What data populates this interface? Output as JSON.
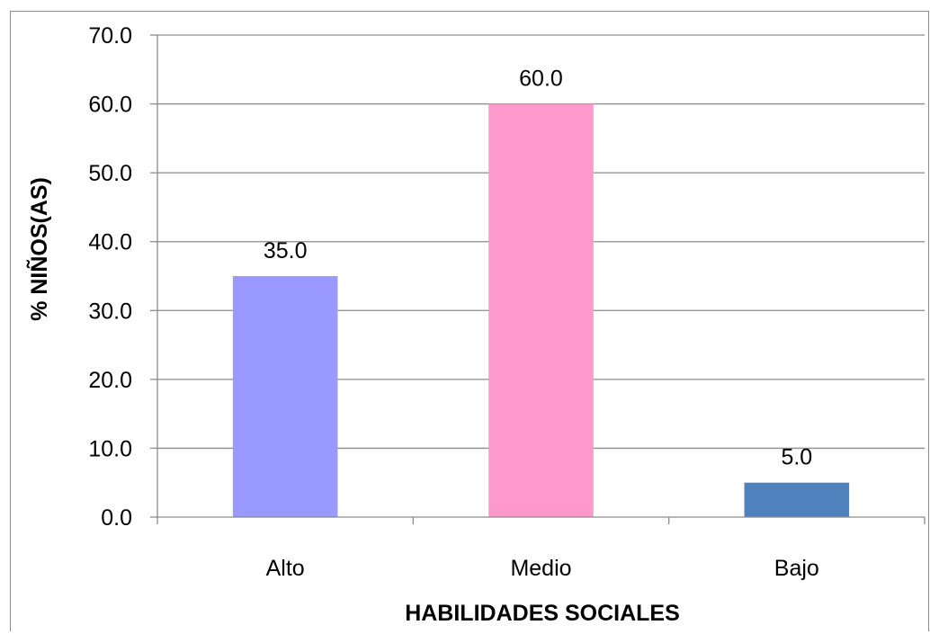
{
  "chart_data": {
    "type": "bar",
    "title": "",
    "xlabel": "HABILIDADES SOCIALES",
    "ylabel": "% NIÑOS(AS)",
    "categories": [
      "Alto",
      "Medio",
      "Bajo"
    ],
    "values": [
      35.0,
      60.0,
      5.0
    ],
    "data_labels": [
      "35.0",
      "60.0",
      "5.0"
    ],
    "bar_colors": [
      "#9999ff",
      "#ff99cc",
      "#4f81bd"
    ],
    "ylim": [
      0,
      70
    ],
    "yticks": [
      "0.0",
      "10.0",
      "20.0",
      "30.0",
      "40.0",
      "50.0",
      "60.0",
      "70.0"
    ],
    "grid": true,
    "legend": "none"
  }
}
